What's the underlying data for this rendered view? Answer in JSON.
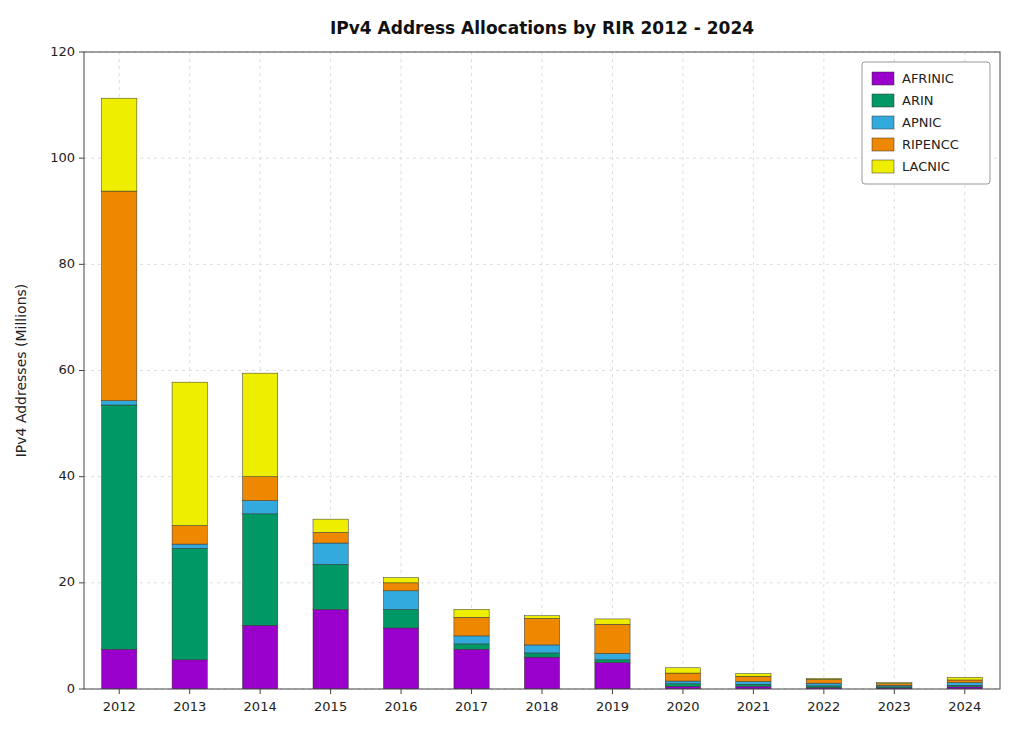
{
  "chart_data": {
    "type": "bar",
    "stacked": true,
    "title": "IPv4 Address Allocations by RIR 2012 - 2024",
    "ylabel": "IPv4 Addresses (Millions)",
    "categories": [
      "2012",
      "2013",
      "2014",
      "2015",
      "2016",
      "2017",
      "2018",
      "2019",
      "2020",
      "2021",
      "2022",
      "2023",
      "2024"
    ],
    "series": [
      {
        "name": "AFRINIC",
        "color": "#9900CC",
        "values": [
          7.5,
          5.5,
          12.0,
          15.0,
          11.5,
          7.5,
          6.0,
          5.0,
          0.5,
          0.5,
          0.3,
          0.2,
          0.4
        ]
      },
      {
        "name": "ARIN",
        "color": "#009966",
        "values": [
          46.0,
          21.0,
          21.0,
          8.5,
          3.5,
          1.0,
          0.8,
          0.5,
          0.5,
          0.4,
          0.3,
          0.2,
          0.3
        ]
      },
      {
        "name": "APNIC",
        "color": "#33AADD",
        "values": [
          0.8,
          0.8,
          2.5,
          4.0,
          3.5,
          1.5,
          1.5,
          1.2,
          0.5,
          0.5,
          0.5,
          0.3,
          0.5
        ]
      },
      {
        "name": "RIPENCC",
        "color": "#EE8800",
        "values": [
          39.5,
          3.5,
          4.5,
          2.0,
          1.5,
          3.5,
          5.0,
          5.5,
          1.5,
          1.0,
          0.7,
          0.3,
          0.5
        ]
      },
      {
        "name": "LACNIC",
        "color": "#EEEE00",
        "values": [
          17.5,
          27.0,
          19.5,
          2.5,
          1.0,
          1.5,
          0.5,
          1.0,
          1.0,
          0.5,
          0.2,
          0.2,
          0.5
        ]
      }
    ],
    "ylim": [
      0,
      120
    ],
    "yticks": [
      0,
      20,
      40,
      60,
      80,
      100,
      120
    ],
    "grid": true,
    "legend": "upper right"
  }
}
